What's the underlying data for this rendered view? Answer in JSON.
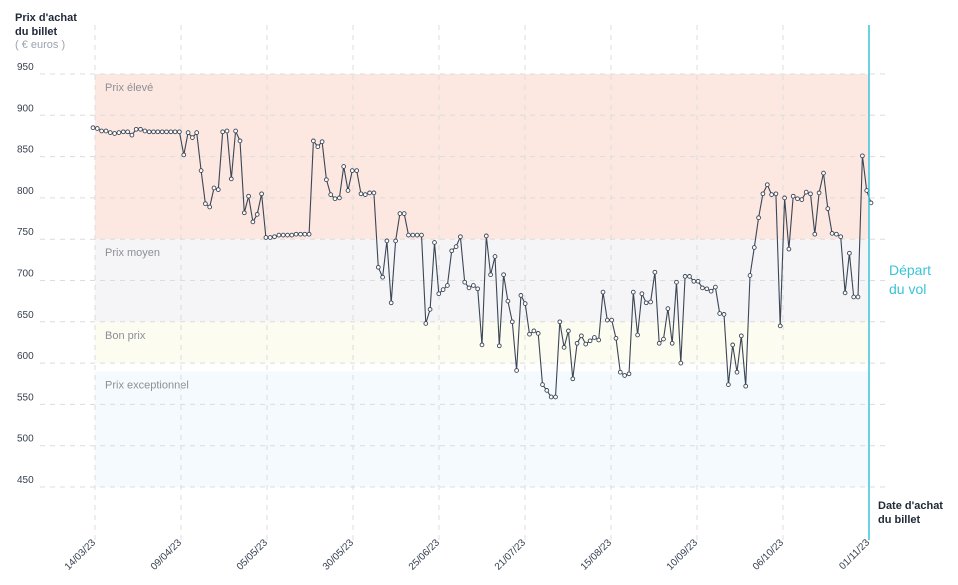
{
  "y_title_line1": "Prix d'achat",
  "y_title_line2": "du billet",
  "y_unit": "( € euros )",
  "x_title_line1": "Date d'achat",
  "x_title_line2": "du billet",
  "departure_line1": "Départ",
  "departure_line2": "du vol",
  "colors": {
    "line": "#3b4656",
    "zone_high": "#fde7e1",
    "zone_mid": "#f5f5f7",
    "zone_good": "#fcfcf0",
    "zone_exceptional": "#f4fafd",
    "departure": "#38c3d8",
    "grid": "#dcdcdc"
  },
  "chart_data": {
    "type": "line",
    "ylim": [
      450,
      950
    ],
    "y_ticks": [
      950,
      900,
      850,
      800,
      750,
      700,
      650,
      600,
      550,
      500,
      450
    ],
    "x_ticks": [
      "14/03/23",
      "09/04/23",
      "05/05/23",
      "30/05/23",
      "25/06/23",
      "21/07/23",
      "15/08/23",
      "10/09/23",
      "06/10/23",
      "01/11/23"
    ],
    "zones": [
      {
        "label": "Prix élevé",
        "from": 750,
        "to": 950
      },
      {
        "label": "Prix moyen",
        "from": 650,
        "to": 750
      },
      {
        "label": "Bon prix",
        "from": 600,
        "to": 650
      },
      {
        "label": "Prix exceptionnel",
        "from": 450,
        "to": 590
      }
    ],
    "departure_date": "01/11/23",
    "series": [
      {
        "values": [
          885,
          884,
          881,
          881,
          879,
          878,
          879,
          880,
          880,
          876,
          883,
          883,
          881,
          880,
          880,
          880,
          880,
          880,
          880,
          880,
          880,
          852,
          879,
          873,
          879,
          833,
          793,
          789,
          812,
          810,
          880,
          881,
          823,
          881,
          869,
          782,
          802,
          771,
          780,
          805,
          752,
          752,
          753,
          755,
          755,
          755,
          755,
          756,
          756,
          756,
          756,
          869,
          862,
          868,
          822,
          804,
          799,
          800,
          838,
          809,
          833,
          833,
          805,
          804,
          806,
          806,
          716,
          704,
          748,
          673,
          748,
          781,
          781,
          755,
          755,
          755,
          755,
          648,
          665,
          746,
          684,
          689,
          694,
          736,
          741,
          753,
          698,
          691,
          694,
          690,
          622,
          754,
          707,
          729,
          621,
          707,
          675,
          650,
          591,
          682,
          672,
          635,
          639,
          636,
          574,
          567,
          559,
          559,
          650,
          619,
          639,
          581,
          624,
          633,
          623,
          627,
          631,
          628,
          686,
          652,
          652,
          630,
          589,
          585,
          587,
          686,
          634,
          684,
          673,
          674,
          710,
          624,
          629,
          666,
          624,
          698,
          600,
          705,
          705,
          699,
          699,
          691,
          690,
          687,
          692,
          660,
          659,
          574,
          622,
          589,
          633,
          572,
          706,
          740,
          776,
          805,
          816,
          804,
          805,
          645,
          800,
          738,
          802,
          799,
          798,
          807,
          805,
          756,
          806,
          830,
          787,
          757,
          756,
          753,
          685,
          733,
          680,
          680,
          851,
          809,
          794
        ]
      }
    ]
  }
}
